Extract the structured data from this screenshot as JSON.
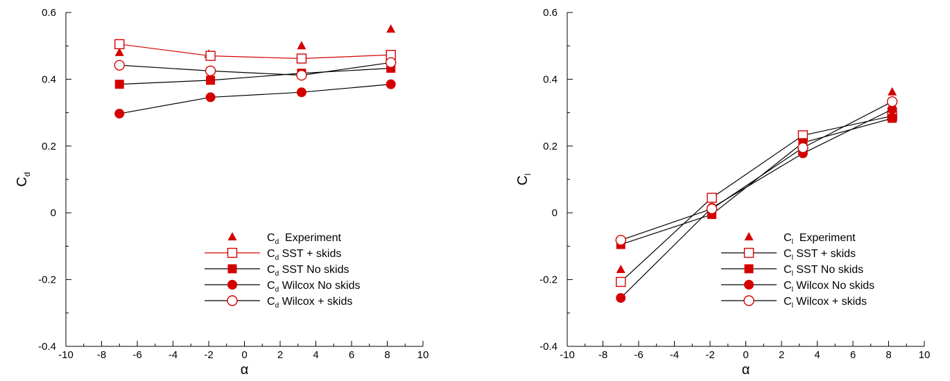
{
  "colors": {
    "red": "#d40000",
    "black": "#000000"
  },
  "chart_data": [
    {
      "type": "line",
      "xlabel": "α",
      "ylabel_main": "C",
      "ylabel_sub": "d",
      "xlim": [
        -10,
        10
      ],
      "ylim": [
        -0.4,
        0.6
      ],
      "xticks": [
        "-10",
        "-8",
        "-6",
        "-4",
        "-2",
        "0",
        "2",
        "4",
        "6",
        "8",
        "10"
      ],
      "yticks": [
        "-0.4",
        "-0.2",
        "0",
        "0.2",
        "0.4",
        "0.6"
      ],
      "grid": false,
      "legend_position": "bottom-right",
      "series": [
        {
          "name_main": "C",
          "name_sub": "d",
          "name_rest": "  Experiment",
          "marker": "triangle-filled",
          "line": false,
          "color": "#d40000",
          "x": [
            -7,
            -2,
            3.2,
            8.2
          ],
          "y": [
            0.48,
            0.475,
            0.5,
            0.55
          ]
        },
        {
          "name_main": "C",
          "name_sub": "d",
          "name_rest": " SST + skids",
          "marker": "square-open",
          "line": true,
          "line_color": "#d40000",
          "color": "#d40000",
          "x": [
            -7,
            -1.9,
            3.2,
            8.2
          ],
          "y": [
            0.505,
            0.47,
            0.462,
            0.473
          ]
        },
        {
          "name_main": "C",
          "name_sub": "d",
          "name_rest": " SST No skids",
          "marker": "square-filled",
          "line": true,
          "line_color": "#000000",
          "color": "#d40000",
          "x": [
            -7,
            -1.9,
            3.2,
            8.2
          ],
          "y": [
            0.385,
            0.397,
            0.418,
            0.433
          ]
        },
        {
          "name_main": "C",
          "name_sub": "d",
          "name_rest": " Wilcox No skids",
          "marker": "circle-filled",
          "line": true,
          "line_color": "#000000",
          "color": "#d40000",
          "x": [
            -7,
            -1.9,
            3.2,
            8.2
          ],
          "y": [
            0.297,
            0.346,
            0.361,
            0.385
          ]
        },
        {
          "name_main": "C",
          "name_sub": "d",
          "name_rest": " Wilcox + skids",
          "marker": "circle-open",
          "line": true,
          "line_color": "#000000",
          "color": "#d40000",
          "x": [
            -7,
            -1.9,
            3.2,
            8.2
          ],
          "y": [
            0.442,
            0.425,
            0.412,
            0.45
          ]
        }
      ]
    },
    {
      "type": "line",
      "xlabel": "α",
      "ylabel_main": "C",
      "ylabel_sub": "l",
      "xlim": [
        -10,
        10
      ],
      "ylim": [
        -0.4,
        0.6
      ],
      "xticks": [
        "-10",
        "-8",
        "-6",
        "-4",
        "-2",
        "0",
        "2",
        "4",
        "6",
        "8",
        "10"
      ],
      "yticks": [
        "-0.4",
        "-0.2",
        "0",
        "0.2",
        "0.4",
        "0.6"
      ],
      "grid": false,
      "legend_position": "bottom-right",
      "series": [
        {
          "name_main": "C",
          "name_sub": "l",
          "name_rest": "  Experiment",
          "marker": "triangle-filled",
          "line": false,
          "color": "#d40000",
          "x": [
            -7,
            -1.9,
            3.2,
            8.2
          ],
          "y": [
            -0.17,
            0.045,
            0.225,
            0.362
          ]
        },
        {
          "name_main": "C",
          "name_sub": "l",
          "name_rest": " SST + skids",
          "marker": "square-open",
          "line": true,
          "line_color": "#000000",
          "color": "#d40000",
          "x": [
            -7,
            -1.9,
            3.2,
            8.2
          ],
          "y": [
            -0.207,
            0.045,
            0.232,
            0.29
          ]
        },
        {
          "name_main": "C",
          "name_sub": "l",
          "name_rest": " SST No skids",
          "marker": "square-filled",
          "line": true,
          "line_color": "#000000",
          "color": "#d40000",
          "x": [
            -7,
            -1.9,
            3.2,
            8.2
          ],
          "y": [
            -0.095,
            -0.005,
            0.21,
            0.283
          ]
        },
        {
          "name_main": "C",
          "name_sub": "l",
          "name_rest": " Wilcox No skids",
          "marker": "circle-filled",
          "line": true,
          "line_color": "#000000",
          "color": "#d40000",
          "x": [
            -7,
            -1.9,
            3.2,
            8.2
          ],
          "y": [
            -0.255,
            0.015,
            0.178,
            0.31
          ]
        },
        {
          "name_main": "C",
          "name_sub": "l",
          "name_rest": " Wilcox + skids",
          "marker": "circle-open",
          "line": true,
          "line_color": "#000000",
          "color": "#d40000",
          "x": [
            -7,
            -1.9,
            3.2,
            8.2
          ],
          "y": [
            -0.082,
            0.012,
            0.195,
            0.333
          ]
        }
      ]
    }
  ]
}
